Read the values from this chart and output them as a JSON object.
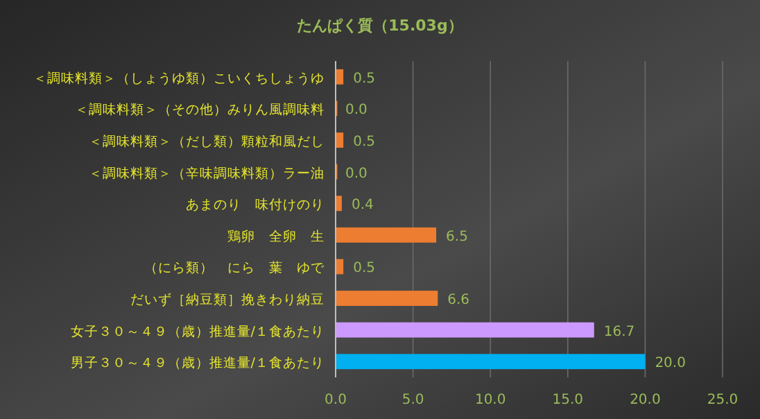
{
  "chart_data": {
    "type": "bar",
    "orientation": "horizontal",
    "title": "たんぱく質（15.03g）",
    "categories": [
      "＜調味料類＞（しょうゆ類）こいくちしょうゆ",
      "＜調味料類＞（その他）みりん風調味料",
      "＜調味料類＞（だし類）顆粒和風だし",
      "＜調味料類＞（辛味調味料類）ラー油",
      "あまのり　味付けのり",
      "鶏卵　全卵　生",
      "（にら類）　にら　葉　ゆで",
      "だいず［納豆類］挽きわり納豆",
      "女子３０～４９（歳）推進量/１食あたり",
      "男子３０～４９（歳）推進量/１食あたり"
    ],
    "values": [
      0.5,
      0.0,
      0.5,
      0.0,
      0.4,
      6.5,
      0.5,
      6.6,
      16.7,
      20.0
    ],
    "value_labels": [
      "0.5",
      "0.0",
      "0.5",
      "0.0",
      "0.4",
      "6.5",
      "0.5",
      "6.6",
      "16.7",
      "20.0"
    ],
    "colors": [
      "#ed7d31",
      "#ed7d31",
      "#ed7d31",
      "#ed7d31",
      "#ed7d31",
      "#ed7d31",
      "#ed7d31",
      "#ed7d31",
      "#cc99ff",
      "#00b0f0"
    ],
    "xlim": [
      0,
      25
    ],
    "xticks": [
      {
        "value": 0,
        "label": "0.0"
      },
      {
        "value": 5,
        "label": "5.0"
      },
      {
        "value": 10,
        "label": "10.0"
      },
      {
        "value": 15,
        "label": "15.0"
      },
      {
        "value": 20,
        "label": "20.0"
      },
      {
        "value": 25,
        "label": "25.0"
      }
    ],
    "grid": "x"
  }
}
